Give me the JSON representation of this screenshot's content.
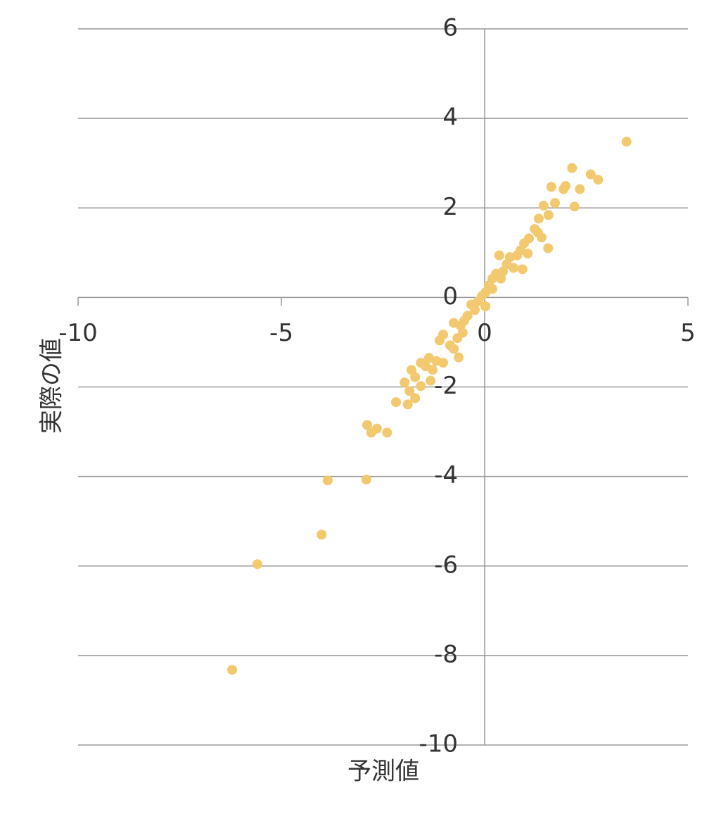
{
  "chart_data": {
    "type": "scatter",
    "x_label": "予測値",
    "y_label": "実際の値",
    "xlim": [
      -10,
      5
    ],
    "ylim": [
      -10,
      6
    ],
    "xticks": [
      -10,
      -5,
      0,
      5
    ],
    "yticks": [
      -10,
      -8,
      -6,
      -4,
      -2,
      0,
      2,
      4,
      6
    ],
    "grid": true,
    "color": "#f3c96f",
    "series": [
      {
        "x": [
          3.49,
          2.15,
          2.61,
          2.79,
          2.34,
          1.94,
          1.99,
          1.64,
          2.21,
          1.73,
          1.45,
          1.56,
          1.57,
          1.33,
          1.23,
          1.31,
          1.09,
          1.4,
          0.97,
          0.88,
          1.06,
          0.8,
          0.93,
          0.62,
          0.36,
          0.54,
          0.71,
          0.45,
          0.28,
          0.4,
          0.19,
          0.1,
          0.19,
          0.02,
          -0.07,
          -0.16,
          0.02,
          -0.24,
          -0.33,
          -0.42,
          -0.5,
          -0.59,
          -0.76,
          -0.54,
          -0.67,
          -0.85,
          -1.02,
          -1.11,
          -0.76,
          -0.64,
          -1.02,
          -1.19,
          -1.37,
          -1.57,
          -1.28,
          -1.45,
          -1.8,
          -1.71,
          -1.33,
          -1.57,
          -1.97,
          -1.85,
          -1.71,
          -1.89,
          -2.18,
          -2.89,
          -2.79,
          -2.65,
          -2.4,
          -3.86,
          -2.91,
          -4.01,
          -5.59,
          -6.21
        ],
        "values": [
          3.48,
          2.89,
          2.75,
          2.63,
          2.42,
          2.42,
          2.49,
          2.47,
          2.03,
          2.11,
          2.05,
          1.1,
          1.84,
          1.76,
          1.53,
          1.45,
          1.32,
          1.34,
          1.21,
          1.05,
          0.98,
          0.94,
          0.63,
          0.9,
          0.94,
          0.74,
          0.66,
          0.58,
          0.53,
          0.42,
          0.42,
          0.27,
          0.19,
          0.11,
          0.03,
          -0.09,
          -0.2,
          -0.28,
          -0.16,
          -0.41,
          -0.52,
          -0.63,
          -0.57,
          -0.79,
          -0.91,
          -1.07,
          -0.83,
          -0.96,
          -1.15,
          -1.34,
          -1.46,
          -1.42,
          -1.35,
          -1.46,
          -1.62,
          -1.54,
          -1.62,
          -1.78,
          -1.86,
          -1.98,
          -1.9,
          -2.09,
          -2.25,
          -2.39,
          -2.34,
          -2.85,
          -3.02,
          -2.93,
          -3.02,
          -4.09,
          -4.07,
          -5.3,
          -5.96,
          -8.32
        ]
      }
    ]
  }
}
